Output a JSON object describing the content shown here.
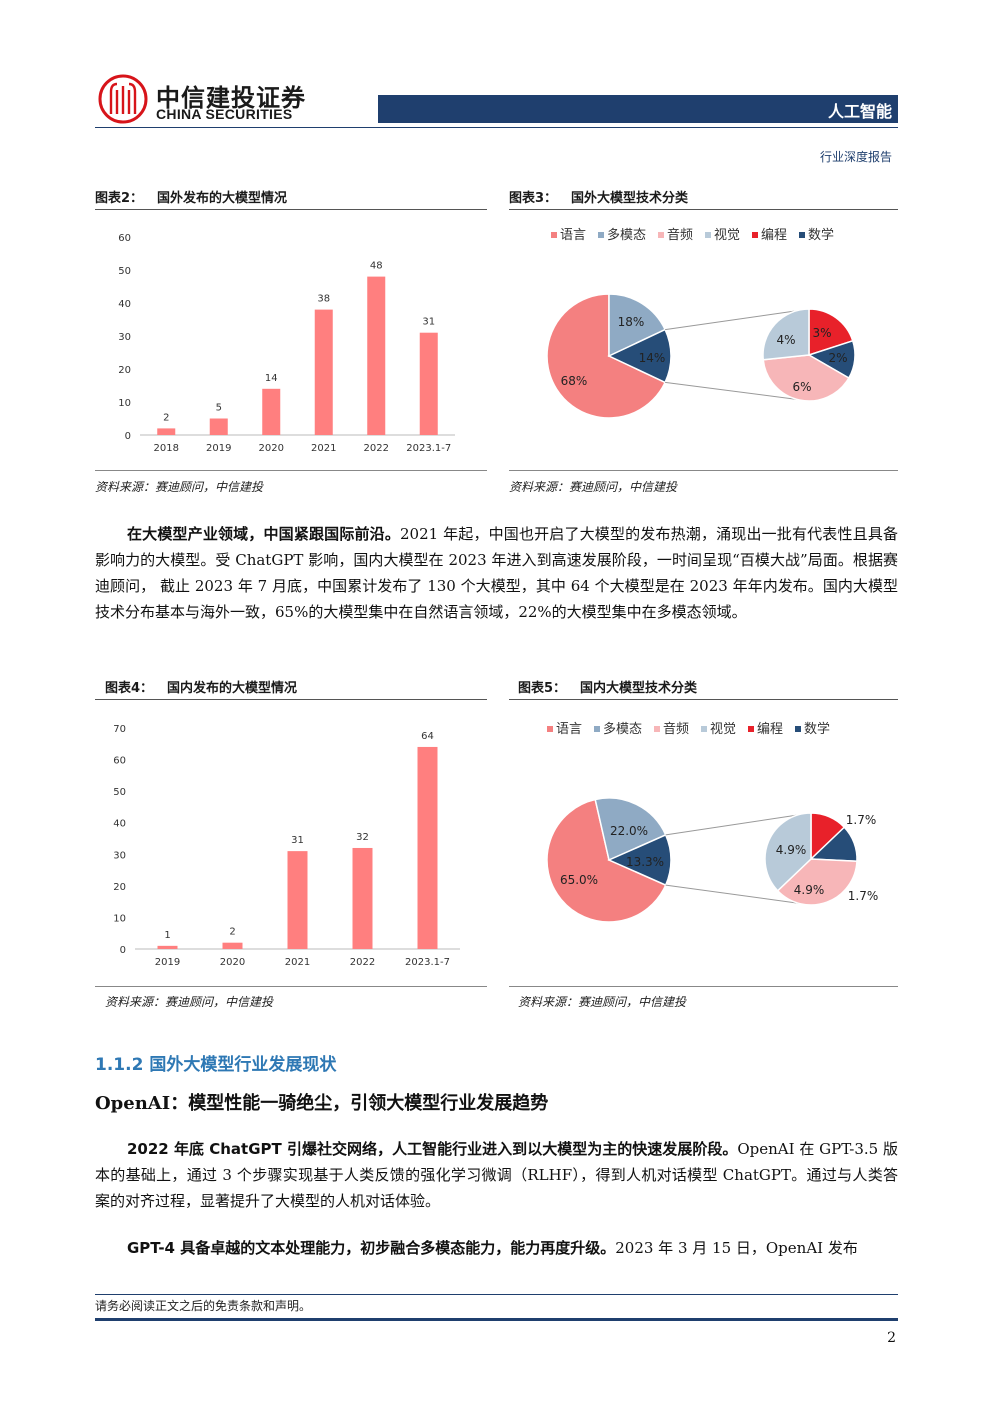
{
  "header": {
    "brand_cn": "中信建投证券",
    "brand_en": "CHINA SECURITIES",
    "label": "人工智能",
    "doc_type": "行业深度报告"
  },
  "colors": {
    "brand": "#1f3f6e",
    "bar": "#ff7f7f",
    "section": "#2e78b4",
    "language": "#f48080",
    "multimodal": "#8faac4",
    "audio": "#f7b6b8",
    "vision": "#b8cad9",
    "coding": "#e8212a",
    "math": "#264d78"
  },
  "figures": {
    "fig2": {
      "num": "图表2：",
      "title": "国外发布的大模型情况",
      "source": "资料来源：赛迪顾问，中信建投"
    },
    "fig3": {
      "num": "图表3：",
      "title": "国外大模型技术分类",
      "source": "资料来源：赛迪顾问，中信建投"
    },
    "fig4": {
      "num": "图表4：",
      "title": "国内发布的大模型情况",
      "source": "资料来源：赛迪顾问，中信建投"
    },
    "fig5": {
      "num": "图表5：",
      "title": "国内大模型技术分类",
      "source": "资料来源：赛迪顾问，中信建投"
    }
  },
  "chart_data": [
    {
      "id": "fig2",
      "type": "bar",
      "title": "",
      "categories": [
        "2018",
        "2019",
        "2020",
        "2021",
        "2022",
        "2023.1-7"
      ],
      "values": [
        2,
        5,
        14,
        38,
        48,
        31
      ],
      "ylim": [
        0,
        60
      ],
      "yticks": [
        0,
        10,
        20,
        30,
        40,
        50,
        60
      ],
      "data_labels": true,
      "grid": false
    },
    {
      "id": "fig3",
      "type": "pie",
      "subtype": "pie-of-pie",
      "legend": [
        "语言",
        "多模态",
        "音频",
        "视觉",
        "编程",
        "数学"
      ],
      "legend_position": "top",
      "main": [
        {
          "label": "68%",
          "value": 68
        },
        {
          "label": "18%",
          "value": 18
        },
        {
          "label": "14%",
          "value": 14
        }
      ],
      "secondary": [
        {
          "label": "3%",
          "value": 3
        },
        {
          "label": "2%",
          "value": 2
        },
        {
          "label": "6%",
          "value": 6
        },
        {
          "label": "4%",
          "value": 4
        }
      ]
    },
    {
      "id": "fig4",
      "type": "bar",
      "title": "",
      "categories": [
        "2019",
        "2020",
        "2021",
        "2022",
        "2023.1-7"
      ],
      "values": [
        1,
        2,
        31,
        32,
        64
      ],
      "ylim": [
        0,
        70
      ],
      "yticks": [
        0,
        10,
        20,
        30,
        40,
        50,
        60,
        70
      ],
      "data_labels": true,
      "grid": false
    },
    {
      "id": "fig5",
      "type": "pie",
      "subtype": "pie-of-pie",
      "legend": [
        "语言",
        "多模态",
        "音频",
        "视觉",
        "编程",
        "数学"
      ],
      "legend_position": "top",
      "main": [
        {
          "label": "65.0%",
          "value": 65.0
        },
        {
          "label": "22.0%",
          "value": 22.0
        },
        {
          "label": "13.3%",
          "value": 13.3
        }
      ],
      "secondary": [
        {
          "label": "1.7%",
          "value": 1.7
        },
        {
          "label": "1.7%",
          "value": 1.7
        },
        {
          "label": "4.9%",
          "value": 4.9
        },
        {
          "label": "4.9%",
          "value": 4.9
        }
      ]
    }
  ],
  "body": {
    "p1_bold": "在大模型产业领域，中国紧跟国际前沿。",
    "p1_rest": "2021 年起，中国也开启了大模型的发布热潮，涌现出一批有代表性且具备影响力的大模型。受 ChatGPT 影响，国内大模型在 2023 年进入到高速发展阶段，一时间呈现“百模大战”局面。根据赛迪顾问， 截止 2023 年 7 月底，中国累计发布了 130 个大模型，其中 64 个大模型是在 2023 年年内发布。国内大模型技术分布基本与海外一致，65%的大模型集中在自然语言领域，22%的大模型集中在多模态领域。",
    "section_heading": "1.1.2  国外大模型行业发展现状",
    "sub_heading": "OpenAI：模型性能一骑绝尘，引领大模型行业发展趋势",
    "p2_bold": "2022 年底 ChatGPT 引爆社交网络，人工智能行业进入到以大模型为主的快速发展阶段。",
    "p2_rest": "OpenAI 在 GPT-3.5 版本的基础上，通过 3 个步骤实现基于人类反馈的强化学习微调（RLHF），得到人机对话模型 ChatGPT。通过与人类答案的对齐过程，显著提升了大模型的人机对话体验。",
    "p3_bold": "GPT-4 具备卓越的文本处理能力，初步融合多模态能力，能力再度升级。",
    "p3_rest": "2023 年 3 月 15 日，OpenAI 发布"
  },
  "footer": {
    "note": "请务必阅读正文之后的免责条款和声明。",
    "page": "2"
  }
}
